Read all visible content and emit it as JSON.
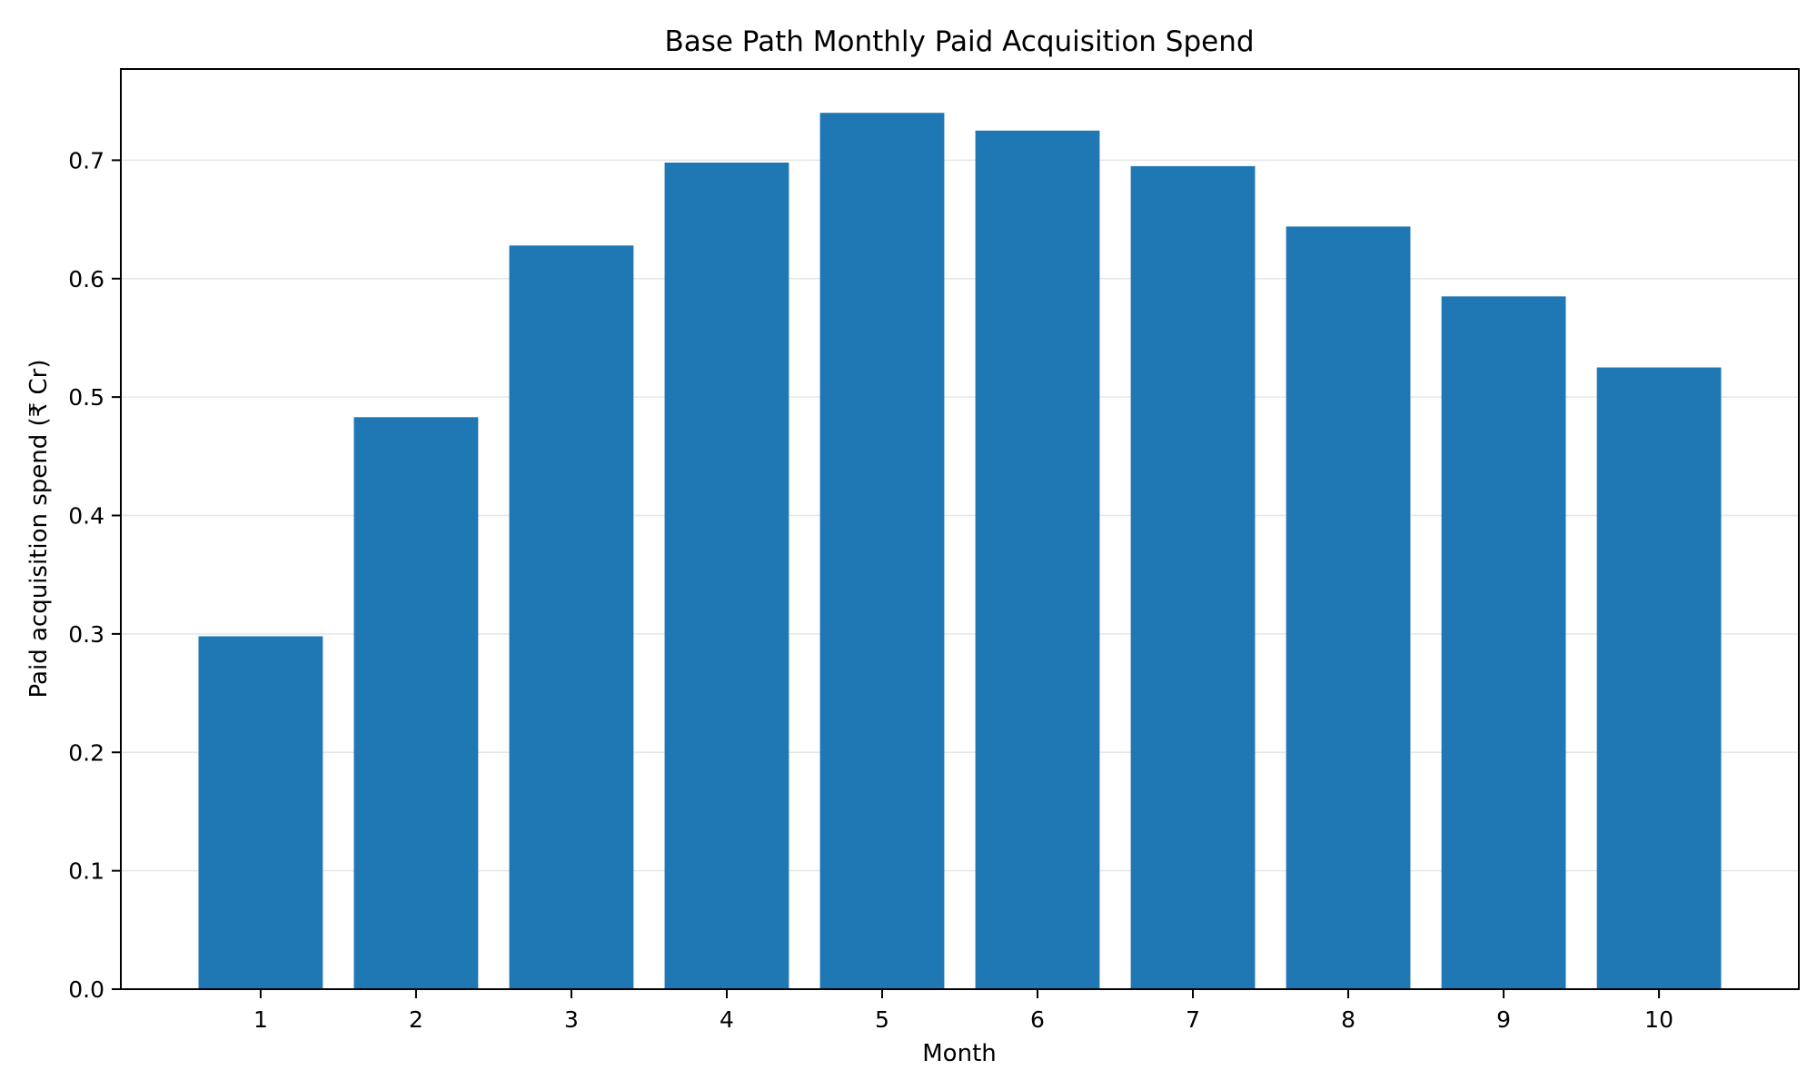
{
  "chart_data": {
    "type": "bar",
    "title": "Base Path Monthly Paid Acquisition Spend",
    "xlabel": "Month",
    "ylabel": "Paid acquisition spend (₹ Cr)",
    "categories": [
      "1",
      "2",
      "3",
      "4",
      "5",
      "6",
      "7",
      "8",
      "9",
      "10"
    ],
    "values": [
      0.298,
      0.483,
      0.628,
      0.698,
      0.74,
      0.725,
      0.695,
      0.644,
      0.585,
      0.525
    ],
    "ylim": [
      0,
      0.777
    ],
    "yticks": [
      "0.0",
      "0.1",
      "0.2",
      "0.3",
      "0.4",
      "0.5",
      "0.6",
      "0.7"
    ],
    "grid": "y-axis, light gray",
    "legend": "none",
    "bar_color": "#1f77b4",
    "grid_color": "#e6e6e6",
    "axis_color": "#000000"
  }
}
